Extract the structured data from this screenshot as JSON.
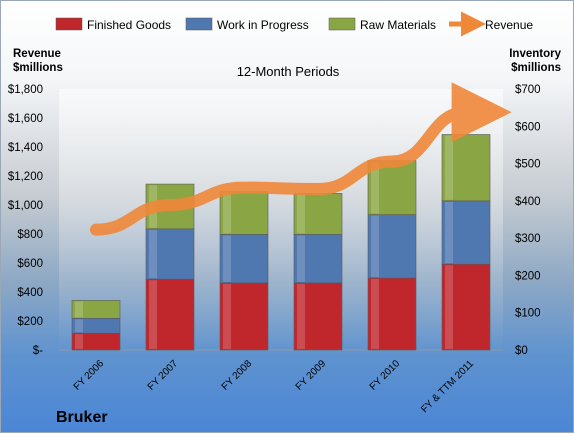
{
  "chart_data": {
    "type": "bar",
    "stacked": true,
    "title": "12-Month Periods",
    "company": "Bruker",
    "categories": [
      "FY 2006",
      "FY 2007",
      "FY 2008",
      "FY 2009",
      "FY 2010",
      "FY & TTM 2011"
    ],
    "series": [
      {
        "name": "Finished Goods",
        "axis": "right",
        "color": "#c0272d",
        "values": [
          45,
          190,
          180,
          180,
          193,
          230
        ]
      },
      {
        "name": "Work in Progress",
        "axis": "right",
        "color": "#4f77b0",
        "values": [
          40,
          135,
          130,
          130,
          170,
          170
        ]
      },
      {
        "name": "Raw Materials",
        "axis": "right",
        "color": "#8aa644",
        "values": [
          48,
          120,
          115,
          110,
          145,
          178
        ]
      },
      {
        "name": "Revenue",
        "axis": "left",
        "type": "line",
        "color": "#f0883a",
        "values": [
          830,
          1000,
          1120,
          1110,
          1300,
          1640
        ]
      }
    ],
    "y_left": {
      "label": "Revenue $millions",
      "label_lines": [
        "Revenue",
        "$millions"
      ],
      "ylim": [
        0,
        1800
      ],
      "ticks": [
        "$-",
        "$200",
        "$400",
        "$600",
        "$800",
        "$1,000",
        "$1,200",
        "$1,400",
        "$1,600",
        "$1,800"
      ]
    },
    "y_right": {
      "label": "Inventory $millions",
      "label_lines": [
        "Inventory",
        "$millions"
      ],
      "ylim": [
        0,
        700
      ],
      "ticks": [
        "$0",
        "$100",
        "$200",
        "$300",
        "$400",
        "$500",
        "$600",
        "$700"
      ]
    },
    "legend": {
      "position": "top"
    },
    "grid": false
  }
}
